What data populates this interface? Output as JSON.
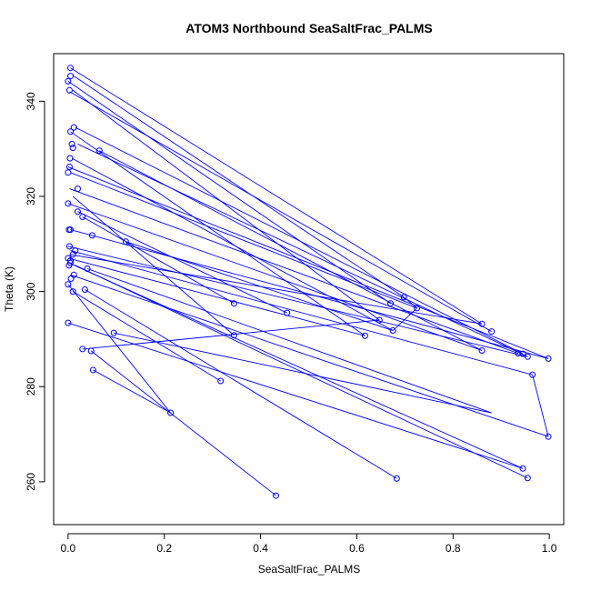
{
  "chart_data": {
    "type": "line",
    "title": "ATOM3 Northbound SeaSaltFrac_PALMS",
    "xlabel": "SeaSaltFrac_PALMS",
    "ylabel": "Theta (K)",
    "xlim": [
      -0.03,
      1.03
    ],
    "ylim": [
      251,
      350
    ],
    "xticks": [
      0.0,
      0.2,
      0.4,
      0.6,
      0.8,
      1.0
    ],
    "xtick_labels": [
      "0.0",
      "0.2",
      "0.4",
      "0.6",
      "0.8",
      "1.0"
    ],
    "yticks": [
      260,
      280,
      300,
      320,
      340
    ],
    "ytick_labels": [
      "260",
      "280",
      "300",
      "320",
      "340"
    ],
    "grid": false,
    "series_color": "#0000ff",
    "marker": "open-circle",
    "series": [
      {
        "x": [
          0.005,
          0.005,
          0.0,
          0.003,
          0.012,
          0.005,
          0.008,
          0.01,
          0.004,
          0.003,
          0.0,
          0.02,
          0.03,
          0.002,
          0.005,
          0.05,
          0.015,
          0.01,
          0.0,
          0.002,
          0.12,
          0.006,
          0.01,
          0.0,
          0.04,
          0.005,
          0.0,
          0.012,
          0.003,
          0.0,
          0.035,
          0.02,
          0.005
        ],
        "y": [
          347.0,
          345.3,
          344.2,
          342.3,
          334.5,
          333.6,
          331.0,
          330.2,
          328.0,
          326.2,
          325.0,
          321.6,
          315.7,
          313.0,
          313.0,
          311.8,
          308.6,
          307.8,
          307.0,
          305.5,
          310.5,
          302.7,
          300.0,
          301.5,
          304.8,
          306.0,
          293.4,
          303.5,
          309.5,
          318.5,
          300.4,
          316.8,
          306.5
        ]
      },
      {
        "x": [
          0.86,
          0.698,
          0.67,
          0.647,
          0.617,
          0.725,
          0.675,
          0.88,
          0.945,
          0.86,
          0.935,
          0.955,
          0.998,
          0.965,
          0.998,
          0.945,
          0.955,
          0.683,
          0.432,
          0.213,
          0.317,
          0.345,
          0.455,
          0.345,
          0.065,
          0.095,
          0.03,
          0.048,
          0.052
        ],
        "y": [
          293.2,
          298.8,
          297.5,
          294.0,
          290.7,
          296.5,
          291.8,
          291.6,
          286.9,
          287.6,
          287.0,
          286.3,
          285.9,
          282.5,
          269.5,
          262.8,
          260.8,
          260.7,
          257.1,
          274.5,
          281.2,
          290.8,
          295.5,
          297.5,
          329.6,
          291.3,
          287.9,
          287.5,
          283.5
        ]
      }
    ],
    "segments": [
      [
        0.005,
        347.0,
        0.86,
        293.2
      ],
      [
        0.012,
        345.3,
        0.698,
        298.8
      ],
      [
        0.0,
        344.2,
        0.67,
        297.5
      ],
      [
        0.01,
        342.3,
        0.647,
        294.0
      ],
      [
        0.003,
        342.0,
        0.88,
        291.6
      ],
      [
        0.015,
        334.5,
        0.945,
        286.9
      ],
      [
        0.005,
        333.6,
        0.617,
        290.7
      ],
      [
        0.02,
        331.0,
        0.955,
        286.3
      ],
      [
        0.065,
        329.6,
        0.86,
        287.6
      ],
      [
        0.008,
        328.0,
        0.675,
        291.8
      ],
      [
        0.0,
        326.2,
        0.998,
        285.9
      ],
      [
        0.005,
        325.0,
        0.725,
        296.5
      ],
      [
        0.003,
        321.6,
        0.935,
        287.0
      ],
      [
        0.01,
        320.0,
        0.345,
        290.8
      ],
      [
        0.0,
        318.5,
        0.86,
        287.6
      ],
      [
        0.02,
        316.8,
        0.455,
        295.5
      ],
      [
        0.03,
        315.7,
        0.345,
        297.5
      ],
      [
        0.005,
        313.0,
        0.998,
        285.9
      ],
      [
        0.12,
        310.5,
        0.675,
        291.8
      ],
      [
        0.0,
        309.5,
        0.955,
        286.3
      ],
      [
        0.005,
        308.6,
        0.965,
        282.5
      ],
      [
        0.003,
        307.8,
        0.86,
        293.2
      ],
      [
        0.0,
        307.0,
        0.617,
        290.7
      ],
      [
        0.002,
        306.0,
        0.945,
        262.8
      ],
      [
        0.015,
        305.5,
        0.955,
        260.8
      ],
      [
        0.04,
        304.8,
        0.88,
        274.5
      ],
      [
        0.005,
        303.5,
        0.998,
        269.5
      ],
      [
        0.0,
        301.5,
        0.213,
        274.5
      ],
      [
        0.035,
        300.4,
        0.683,
        260.7
      ],
      [
        0.01,
        300.0,
        0.317,
        281.2
      ],
      [
        0.0,
        293.4,
        0.945,
        262.8
      ],
      [
        0.095,
        291.3,
        0.88,
        274.5
      ],
      [
        0.03,
        287.9,
        0.647,
        294.0
      ],
      [
        0.048,
        287.5,
        0.432,
        257.1
      ],
      [
        0.052,
        283.5,
        0.213,
        274.5
      ],
      [
        0.965,
        282.5,
        0.998,
        269.5
      ],
      [
        0.725,
        296.5,
        0.698,
        298.8
      ],
      [
        0.675,
        291.8,
        0.725,
        296.5
      ]
    ]
  }
}
